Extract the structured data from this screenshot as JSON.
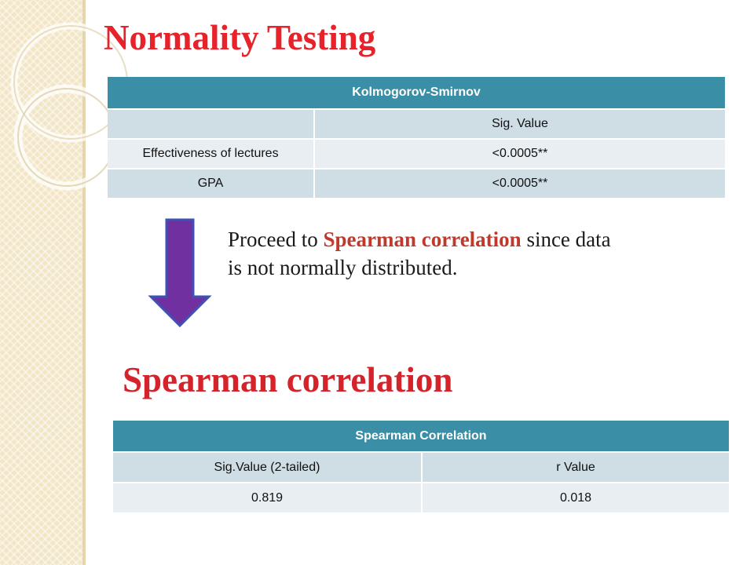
{
  "slide": {
    "title": "Normality Testing",
    "ks_table": {
      "header": "Kolmogorov-Smirnov",
      "col_label_blank": "",
      "col_label": "Sig. Value",
      "rows": [
        {
          "label": "Effectiveness of lectures",
          "value": "<0.0005**"
        },
        {
          "label": "GPA",
          "value": "<0.0005**"
        }
      ]
    },
    "note": {
      "prefix": "Proceed to ",
      "highlight": "Spearman correlation",
      "suffix": " since data is not normally distributed."
    },
    "section_title": "Spearman correlation",
    "spearman_table": {
      "header": "Spearman Correlation",
      "col1_label": "Sig.Value (2-tailed)",
      "col2_label": "r Value",
      "row": {
        "sig": "0.819",
        "r": "0.018"
      }
    }
  },
  "colors": {
    "title": "#e8222a",
    "table_header": "#3a8fa6",
    "row_dark": "#cfdde4",
    "row_light": "#e8eef2",
    "arrow_fill": "#7030a0",
    "arrow_stroke": "#3f51b5",
    "side_band": "#f3e6c6"
  },
  "icons": {
    "arrow": "down-arrow-icon"
  }
}
